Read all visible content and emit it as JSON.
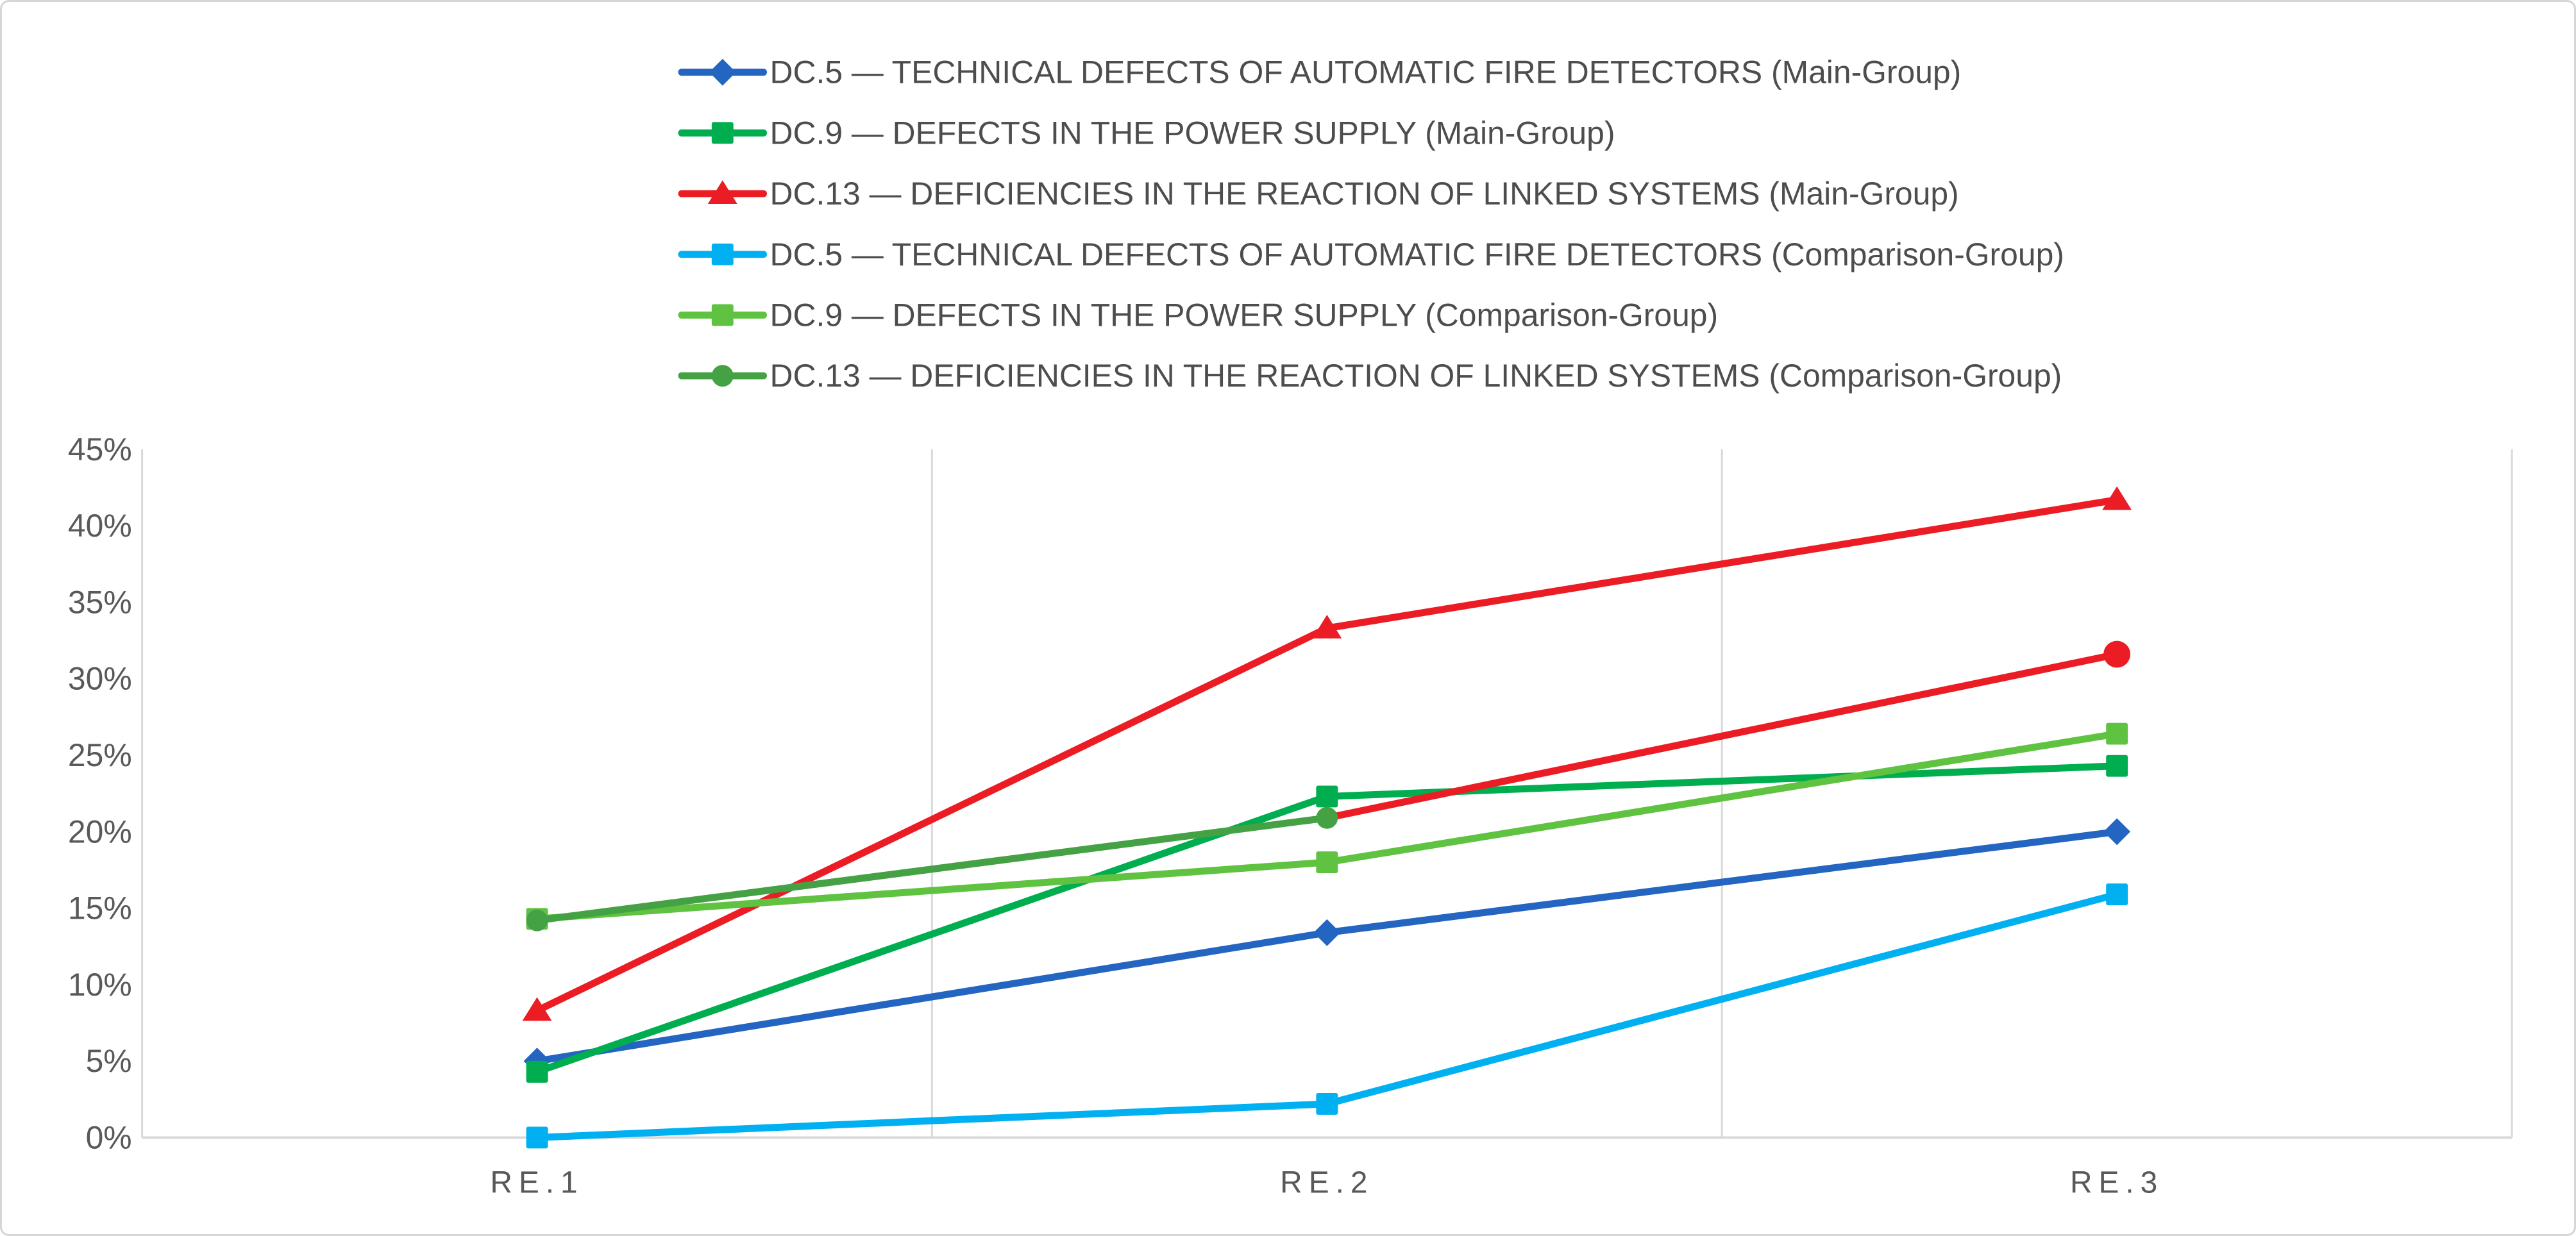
{
  "figure": {
    "background": "#FFFFFF",
    "border_color": "#D6D6D6",
    "axis_text_color": "#595959",
    "legend_text_color": "#4D4D4D",
    "gridline_color": "#D9D9D9",
    "axis_line_color": "#D9D9D9"
  },
  "chart_data": {
    "type": "line",
    "title": "",
    "xlabel": "",
    "ylabel": "",
    "categories": [
      "RE.1",
      "RE.2",
      "RE.3"
    ],
    "ylim": [
      0,
      45
    ],
    "y_tick_step": 5,
    "y_tick_suffix": "%",
    "y_tick_labels": [
      "0%",
      "5%",
      "10%",
      "15%",
      "20%",
      "25%",
      "30%",
      "35%",
      "40%",
      "45%"
    ],
    "grid": "vertical-category-boundaries-only",
    "legend_position": "top-left",
    "series": [
      {
        "id": "dc5-main",
        "label": "DC.5 — TECHNICAL DEFECTS OF AUTOMATIC FIRE DETECTORS (Main-Group)",
        "color": "#2465C2",
        "marker": "diamond",
        "values": [
          5.0,
          13.4,
          20.0
        ]
      },
      {
        "id": "dc9-main",
        "label": "DC.9 — DEFECTS IN THE POWER SUPPLY (Main-Group)",
        "color": "#00AE50",
        "marker": "square",
        "values": [
          4.3,
          22.3,
          24.3
        ]
      },
      {
        "id": "dc13-main",
        "label": "DC.13 — DEFICIENCIES IN THE REACTION OF LINKED SYSTEMS (Main-Group)",
        "color": "#EB1C24",
        "marker": "triangle",
        "values": [
          8.3,
          33.3,
          41.7
        ]
      },
      {
        "id": "dc5-comparison",
        "label": "DC.5 — TECHNICAL DEFECTS OF AUTOMATIC FIRE DETECTORS (Comparison-Group)",
        "color": "#00B0F0",
        "marker": "square",
        "values": [
          0.0,
          2.2,
          15.9
        ]
      },
      {
        "id": "dc9-comparison",
        "label": "DC.9 — DEFECTS IN THE POWER SUPPLY (Comparison-Group)",
        "color": "#5FC341",
        "marker": "square",
        "values": [
          14.3,
          18.0,
          26.4
        ]
      },
      {
        "id": "dc13-comparison",
        "label": "DC.13 — DEFICIENCIES IN THE REACTION OF LINKED SYSTEMS (Comparison-Group)",
        "color": "#44A244",
        "marker": "circle",
        "values": [
          14.2,
          20.9,
          31.6
        ],
        "segment_colors": [
          "#44A244",
          "#EB1C24"
        ],
        "marker_colors": [
          "#44A244",
          "#44A244",
          "#EB1C24"
        ],
        "marker_sizes": [
          17,
          17,
          21
        ]
      }
    ]
  }
}
